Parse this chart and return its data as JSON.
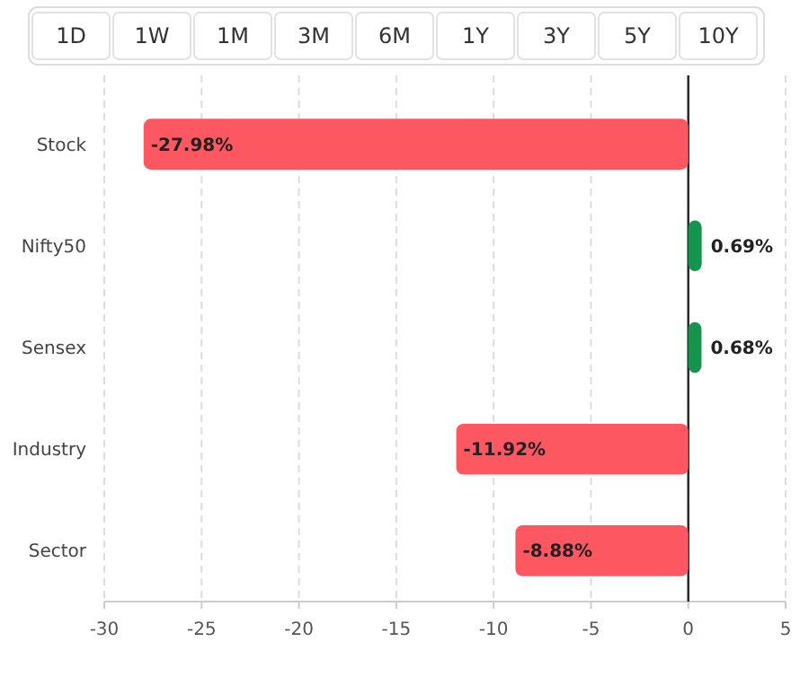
{
  "chart_data": {
    "type": "bar",
    "orientation": "horizontal",
    "categories": [
      "Stock",
      "Nifty50",
      "Sensex",
      "Industry",
      "Sector"
    ],
    "values": [
      -27.98,
      0.69,
      0.68,
      -11.92,
      -8.88
    ],
    "colors": [
      "#fd5862",
      "#16934c",
      "#16934c",
      "#fd5862",
      "#fd5862"
    ],
    "value_labels": [
      "-27.98%",
      "0.69%",
      "0.68%",
      "-11.92%",
      "-8.88%"
    ],
    "xlim": [
      -30,
      5
    ],
    "xticks": [
      -30,
      -25,
      -20,
      -15,
      -10,
      -5,
      0,
      5
    ],
    "grid": "x",
    "annotations": [
      "1D",
      "1W",
      "1M",
      "3M",
      "6M",
      "1Y",
      "3Y",
      "5Y",
      "10Y"
    ]
  }
}
